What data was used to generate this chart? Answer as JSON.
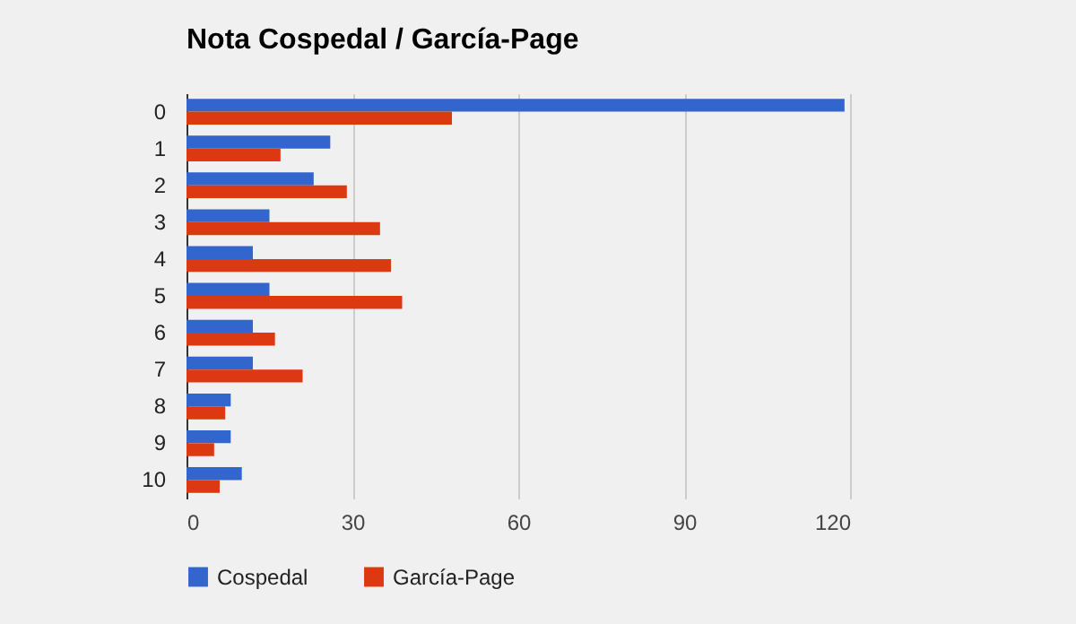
{
  "chart_data": {
    "type": "bar",
    "orientation": "horizontal",
    "title": "Nota Cospedal / García-Page",
    "categories": [
      "0",
      "1",
      "2",
      "3",
      "4",
      "5",
      "6",
      "7",
      "8",
      "9",
      "10"
    ],
    "series": [
      {
        "name": "Cospedal",
        "color": "#3366cc",
        "values": [
          119,
          26,
          23,
          15,
          12,
          15,
          12,
          12,
          8,
          8,
          10
        ]
      },
      {
        "name": "García-Page",
        "color": "#dc3912",
        "values": [
          48,
          17,
          29,
          35,
          37,
          39,
          16,
          21,
          7,
          5,
          6
        ]
      }
    ],
    "xlim": [
      0,
      120
    ],
    "xticks": [
      0,
      30,
      60,
      90,
      120
    ],
    "grid": "x",
    "legend": "bottom"
  }
}
